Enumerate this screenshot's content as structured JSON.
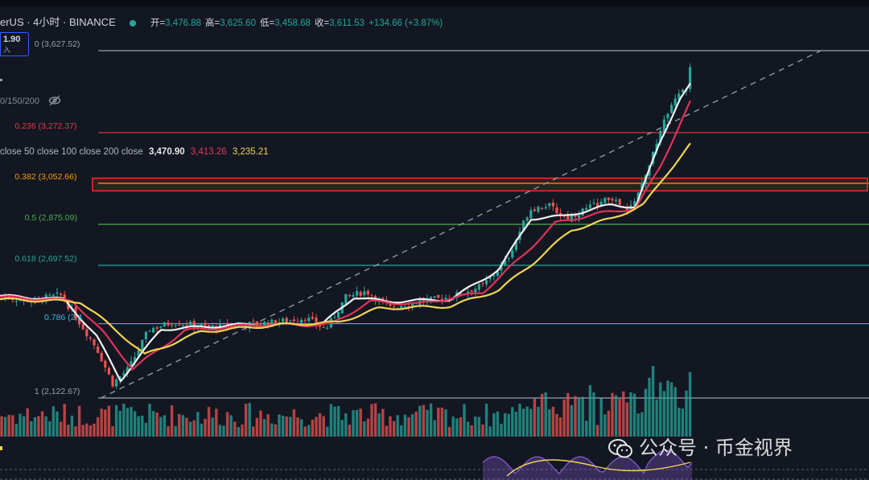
{
  "header": {
    "symbol": "erUS · 4小时 · BINANCE",
    "ohlc": [
      {
        "k": "开=",
        "v": "3,476.88"
      },
      {
        "k": "高=",
        "v": "3,625.60"
      },
      {
        "k": "低=",
        "v": "3,458.68"
      },
      {
        "k": "收=",
        "v": "3,611.53"
      },
      {
        "k": "",
        "v": "+134.66 (+3.87%)"
      }
    ]
  },
  "price_box": {
    "value": "1.90",
    "label": "入"
  },
  "ma_lengths": "0/150/200",
  "ma_legend": {
    "label": "close 50 close 100 close 200 close",
    "values": [
      "3,470.90",
      "3,413.26",
      "3,235.21"
    ]
  },
  "fib_levels": [
    {
      "label": "0 (3,627.52)",
      "price": 3627.52,
      "color": "#9aa0ab"
    },
    {
      "label": "0.236 (3,272.37)",
      "price": 3272.37,
      "color": "#f23645"
    },
    {
      "label": "0.382 (3,052.66)",
      "price": 3052.66,
      "color": "#ff9800"
    },
    {
      "label": "0.5 (2,875.09)",
      "price": 2875.09,
      "color": "#4caf50"
    },
    {
      "label": "0.618 (2,697.52)",
      "price": 2697.52,
      "color": "#26a69a"
    },
    {
      "label": "0.786 (2,4",
      "price": 2444.7,
      "color": "#22c5d8"
    },
    {
      "label": "1 (2,122.67)",
      "price": 2122.67,
      "color": "#9aa0ab"
    }
  ],
  "colors": {
    "up": "#26a69a",
    "down": "#ef5350",
    "ma_fast": "#f0f0f0",
    "ma_mid": "#e0335a",
    "ma_slow": "#f2d455",
    "highlight_box": "#ff2a2a"
  },
  "watermark": "公众号 · 币金视界",
  "chart_data": {
    "type": "candlestick",
    "timeframe": "4h",
    "price_anchors": [
      {
        "x": 0,
        "close": 2560
      },
      {
        "x": 40,
        "close": 2545
      },
      {
        "x": 75,
        "close": 2570
      },
      {
        "x": 95,
        "close": 2470
      },
      {
        "x": 120,
        "close": 2340
      },
      {
        "x": 140,
        "close": 2185
      },
      {
        "x": 160,
        "close": 2250
      },
      {
        "x": 185,
        "close": 2420
      },
      {
        "x": 215,
        "close": 2450
      },
      {
        "x": 260,
        "close": 2430
      },
      {
        "x": 300,
        "close": 2440
      },
      {
        "x": 340,
        "close": 2450
      },
      {
        "x": 380,
        "close": 2470
      },
      {
        "x": 405,
        "close": 2420
      },
      {
        "x": 430,
        "close": 2560
      },
      {
        "x": 455,
        "close": 2585
      },
      {
        "x": 485,
        "close": 2515
      },
      {
        "x": 520,
        "close": 2540
      },
      {
        "x": 560,
        "close": 2560
      },
      {
        "x": 600,
        "close": 2610
      },
      {
        "x": 630,
        "close": 2720
      },
      {
        "x": 658,
        "close": 2940
      },
      {
        "x": 680,
        "close": 2960
      },
      {
        "x": 705,
        "close": 2900
      },
      {
        "x": 730,
        "close": 2945
      },
      {
        "x": 760,
        "close": 2990
      },
      {
        "x": 780,
        "close": 2925
      },
      {
        "x": 800,
        "close": 3060
      },
      {
        "x": 820,
        "close": 3280
      },
      {
        "x": 840,
        "close": 3440
      },
      {
        "x": 855,
        "close": 3470
      },
      {
        "x": 860,
        "close": 3611.53
      }
    ],
    "ma_series": [
      {
        "label": "MA fast",
        "color": "#f0f0f0",
        "anchors": [
          {
            "x": 0,
            "v": 2565
          },
          {
            "x": 80,
            "v": 2550
          },
          {
            "x": 120,
            "v": 2390
          },
          {
            "x": 150,
            "v": 2200
          },
          {
            "x": 200,
            "v": 2420
          },
          {
            "x": 300,
            "v": 2440
          },
          {
            "x": 400,
            "v": 2440
          },
          {
            "x": 440,
            "v": 2560
          },
          {
            "x": 480,
            "v": 2540
          },
          {
            "x": 560,
            "v": 2550
          },
          {
            "x": 620,
            "v": 2680
          },
          {
            "x": 660,
            "v": 2900
          },
          {
            "x": 700,
            "v": 2910
          },
          {
            "x": 760,
            "v": 2960
          },
          {
            "x": 790,
            "v": 2950
          },
          {
            "x": 820,
            "v": 3230
          },
          {
            "x": 845,
            "v": 3420
          },
          {
            "x": 860,
            "v": 3490
          }
        ]
      },
      {
        "label": "MA mid",
        "color": "#e0335a",
        "anchors": [
          {
            "x": 0,
            "v": 2560
          },
          {
            "x": 90,
            "v": 2545
          },
          {
            "x": 130,
            "v": 2400
          },
          {
            "x": 165,
            "v": 2250
          },
          {
            "x": 230,
            "v": 2415
          },
          {
            "x": 320,
            "v": 2440
          },
          {
            "x": 410,
            "v": 2440
          },
          {
            "x": 460,
            "v": 2540
          },
          {
            "x": 520,
            "v": 2530
          },
          {
            "x": 600,
            "v": 2580
          },
          {
            "x": 650,
            "v": 2740
          },
          {
            "x": 690,
            "v": 2880
          },
          {
            "x": 740,
            "v": 2920
          },
          {
            "x": 790,
            "v": 2945
          },
          {
            "x": 820,
            "v": 3120
          },
          {
            "x": 845,
            "v": 3310
          },
          {
            "x": 860,
            "v": 3420
          }
        ]
      },
      {
        "label": "MA slow",
        "color": "#f2d455",
        "anchors": [
          {
            "x": 0,
            "v": 2550
          },
          {
            "x": 100,
            "v": 2540
          },
          {
            "x": 150,
            "v": 2400
          },
          {
            "x": 180,
            "v": 2310
          },
          {
            "x": 250,
            "v": 2410
          },
          {
            "x": 350,
            "v": 2440
          },
          {
            "x": 420,
            "v": 2450
          },
          {
            "x": 470,
            "v": 2510
          },
          {
            "x": 560,
            "v": 2520
          },
          {
            "x": 620,
            "v": 2590
          },
          {
            "x": 660,
            "v": 2700
          },
          {
            "x": 710,
            "v": 2850
          },
          {
            "x": 760,
            "v": 2900
          },
          {
            "x": 800,
            "v": 2960
          },
          {
            "x": 830,
            "v": 3100
          },
          {
            "x": 860,
            "v": 3230
          }
        ]
      }
    ],
    "trendline": {
      "from": {
        "x": 125,
        "price": 2122
      },
      "to": {
        "x": 1020,
        "price": 3627
      },
      "style": "dashed"
    },
    "highlight_zone": {
      "from_price": 3075,
      "to_price": 3020,
      "x_from": 115,
      "x_to": 1078
    }
  }
}
